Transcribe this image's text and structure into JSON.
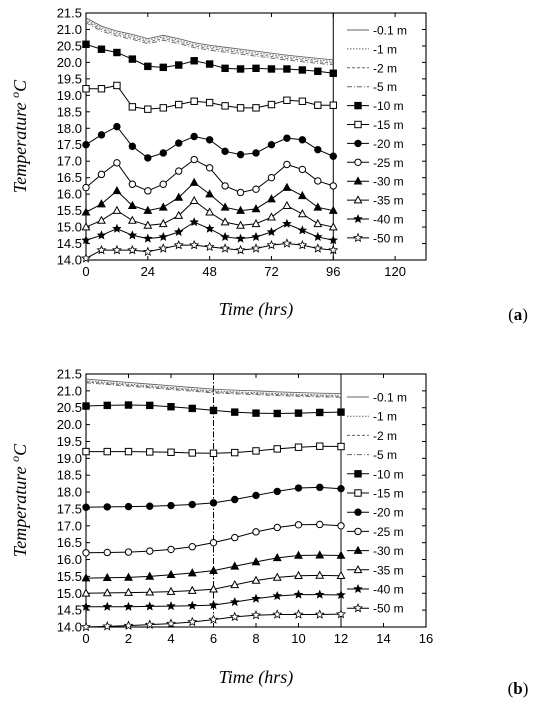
{
  "chart_data": [
    {
      "panel": "(a)",
      "panel_letter": "a",
      "type": "line",
      "xlabel": "Time (hrs)",
      "ylabel_main": "Temperature ",
      "ylabel_sup": "o",
      "ylabel_unit": "C",
      "xlim": [
        0,
        132
      ],
      "ylim": [
        14.0,
        21.5
      ],
      "xticks": [
        0,
        24,
        48,
        72,
        96,
        120
      ],
      "yticks": [
        14.0,
        14.5,
        15.0,
        15.5,
        16.0,
        16.5,
        17.0,
        17.5,
        18.0,
        18.5,
        19.0,
        19.5,
        20.0,
        20.5,
        21.0,
        21.5
      ],
      "vlines": [
        96
      ],
      "grid": false,
      "legend": "right",
      "series": [
        {
          "name": "-0.1 m",
          "marker": "none",
          "dash": "",
          "x": [
            0,
            6,
            12,
            18,
            24,
            30,
            36,
            42,
            48,
            54,
            60,
            66,
            72,
            78,
            84,
            90,
            96
          ],
          "y": [
            21.35,
            21.1,
            20.95,
            20.85,
            20.72,
            20.82,
            20.72,
            20.6,
            20.52,
            20.46,
            20.4,
            20.34,
            20.28,
            20.22,
            20.17,
            20.12,
            20.08
          ]
        },
        {
          "name": "-1 m",
          "marker": "none",
          "dash": "1.5,1.5",
          "x": [
            0,
            6,
            12,
            18,
            24,
            30,
            36,
            42,
            48,
            54,
            60,
            66,
            72,
            78,
            84,
            90,
            96
          ],
          "y": [
            21.3,
            21.05,
            20.9,
            20.8,
            20.67,
            20.77,
            20.67,
            20.55,
            20.47,
            20.41,
            20.35,
            20.29,
            20.23,
            20.17,
            20.12,
            20.07,
            20.03
          ]
        },
        {
          "name": "-2 m",
          "marker": "none",
          "dash": "3,2",
          "x": [
            0,
            6,
            12,
            18,
            24,
            30,
            36,
            42,
            48,
            54,
            60,
            66,
            72,
            78,
            84,
            90,
            96
          ],
          "y": [
            21.25,
            21.0,
            20.85,
            20.75,
            20.62,
            20.72,
            20.62,
            20.5,
            20.42,
            20.36,
            20.3,
            20.24,
            20.18,
            20.12,
            20.07,
            20.02,
            19.98
          ]
        },
        {
          "name": "-5 m",
          "marker": "none",
          "dash": "5,2,1,2",
          "x": [
            0,
            6,
            12,
            18,
            24,
            30,
            36,
            42,
            48,
            54,
            60,
            66,
            72,
            78,
            84,
            90,
            96
          ],
          "y": [
            21.2,
            20.95,
            20.8,
            20.7,
            20.57,
            20.67,
            20.57,
            20.45,
            20.37,
            20.31,
            20.25,
            20.19,
            20.13,
            20.07,
            20.02,
            19.97,
            19.93
          ]
        },
        {
          "name": "-10 m",
          "marker": "filled-square",
          "dash": "",
          "x": [
            0,
            6,
            12,
            18,
            24,
            30,
            36,
            42,
            48,
            54,
            60,
            66,
            72,
            78,
            84,
            90,
            96
          ],
          "y": [
            20.55,
            20.4,
            20.3,
            20.1,
            19.88,
            19.85,
            19.92,
            20.05,
            19.95,
            19.82,
            19.8,
            19.82,
            19.8,
            19.8,
            19.77,
            19.73,
            19.67
          ]
        },
        {
          "name": "-15 m",
          "marker": "open-square",
          "dash": "",
          "x": [
            0,
            6,
            12,
            18,
            24,
            30,
            36,
            42,
            48,
            54,
            60,
            66,
            72,
            78,
            84,
            90,
            96
          ],
          "y": [
            19.2,
            19.2,
            19.3,
            18.65,
            18.58,
            18.62,
            18.72,
            18.82,
            18.78,
            18.68,
            18.62,
            18.62,
            18.72,
            18.85,
            18.82,
            18.7,
            18.7
          ]
        },
        {
          "name": "-20 m",
          "marker": "filled-circle",
          "dash": "",
          "x": [
            0,
            6,
            12,
            18,
            24,
            30,
            36,
            42,
            48,
            54,
            60,
            66,
            72,
            78,
            84,
            90,
            96
          ],
          "y": [
            17.5,
            17.8,
            18.05,
            17.45,
            17.1,
            17.25,
            17.55,
            17.75,
            17.65,
            17.3,
            17.2,
            17.25,
            17.5,
            17.7,
            17.65,
            17.35,
            17.15
          ]
        },
        {
          "name": "-25 m",
          "marker": "open-circle",
          "dash": "",
          "x": [
            0,
            6,
            12,
            18,
            24,
            30,
            36,
            42,
            48,
            54,
            60,
            66,
            72,
            78,
            84,
            90,
            96
          ],
          "y": [
            16.2,
            16.6,
            16.95,
            16.3,
            16.1,
            16.3,
            16.7,
            17.05,
            16.8,
            16.25,
            16.05,
            16.15,
            16.5,
            16.9,
            16.75,
            16.4,
            16.25
          ]
        },
        {
          "name": "-30 m",
          "marker": "filled-triangle",
          "dash": "",
          "x": [
            0,
            6,
            12,
            18,
            24,
            30,
            36,
            42,
            48,
            54,
            60,
            66,
            72,
            78,
            84,
            90,
            96
          ],
          "y": [
            15.45,
            15.7,
            16.1,
            15.65,
            15.5,
            15.6,
            15.9,
            16.35,
            16.0,
            15.6,
            15.5,
            15.55,
            15.85,
            16.2,
            15.95,
            15.6,
            15.5
          ]
        },
        {
          "name": "-35 m",
          "marker": "open-triangle",
          "dash": "",
          "x": [
            0,
            6,
            12,
            18,
            24,
            30,
            36,
            42,
            48,
            54,
            60,
            66,
            72,
            78,
            84,
            90,
            96
          ],
          "y": [
            15.0,
            15.2,
            15.5,
            15.2,
            15.05,
            15.1,
            15.35,
            15.8,
            15.45,
            15.15,
            15.05,
            15.1,
            15.3,
            15.65,
            15.4,
            15.1,
            15.0
          ]
        },
        {
          "name": "-40 m",
          "marker": "filled-star",
          "dash": "",
          "x": [
            0,
            6,
            12,
            18,
            24,
            30,
            36,
            42,
            48,
            54,
            60,
            66,
            72,
            78,
            84,
            90,
            96
          ],
          "y": [
            14.6,
            14.75,
            14.95,
            14.75,
            14.65,
            14.7,
            14.85,
            15.15,
            14.95,
            14.7,
            14.65,
            14.7,
            14.85,
            15.1,
            14.9,
            14.7,
            14.6
          ]
        },
        {
          "name": "-50 m",
          "marker": "open-star",
          "dash": "",
          "x": [
            0,
            6,
            12,
            18,
            24,
            30,
            36,
            42,
            48,
            54,
            60,
            66,
            72,
            78,
            84,
            90,
            96
          ],
          "y": [
            14.05,
            14.3,
            14.3,
            14.3,
            14.25,
            14.35,
            14.45,
            14.45,
            14.4,
            14.35,
            14.3,
            14.35,
            14.45,
            14.5,
            14.45,
            14.35,
            14.3
          ]
        }
      ]
    },
    {
      "panel": "(b)",
      "panel_letter": "b",
      "type": "line",
      "xlabel": "Time (hrs)",
      "ylabel_main": "Temperature ",
      "ylabel_sup": "o",
      "ylabel_unit": "C",
      "xlim": [
        0,
        16
      ],
      "ylim": [
        14.0,
        21.5
      ],
      "xticks": [
        0,
        2,
        4,
        6,
        8,
        10,
        12,
        14,
        16
      ],
      "yticks": [
        14.0,
        14.5,
        15.0,
        15.5,
        16.0,
        16.5,
        17.0,
        17.5,
        18.0,
        18.5,
        19.0,
        19.5,
        20.0,
        20.5,
        21.0,
        21.5
      ],
      "vlines": [
        6,
        12
      ],
      "vline_styles": [
        "dashdot",
        "solid"
      ],
      "grid": false,
      "legend": "right",
      "series": [
        {
          "name": "-0.1 m",
          "marker": "none",
          "dash": "",
          "x": [
            0,
            1,
            2,
            3,
            4,
            5,
            6,
            7,
            8,
            9,
            10,
            11,
            12
          ],
          "y": [
            21.35,
            21.3,
            21.25,
            21.2,
            21.15,
            21.1,
            21.05,
            21.02,
            21.0,
            20.97,
            20.95,
            20.93,
            20.92
          ]
        },
        {
          "name": "-1 m",
          "marker": "none",
          "dash": "1.5,1.5",
          "x": [
            0,
            1,
            2,
            3,
            4,
            5,
            6,
            7,
            8,
            9,
            10,
            11,
            12
          ],
          "y": [
            21.3,
            21.25,
            21.2,
            21.15,
            21.1,
            21.05,
            21.0,
            20.97,
            20.95,
            20.92,
            20.9,
            20.88,
            20.87
          ]
        },
        {
          "name": "-2 m",
          "marker": "none",
          "dash": "3,2",
          "x": [
            0,
            1,
            2,
            3,
            4,
            5,
            6,
            7,
            8,
            9,
            10,
            11,
            12
          ],
          "y": [
            21.27,
            21.22,
            21.17,
            21.12,
            21.07,
            21.02,
            20.97,
            20.94,
            20.92,
            20.89,
            20.87,
            20.85,
            20.84
          ]
        },
        {
          "name": "-5 m",
          "marker": "none",
          "dash": "5,2,1,2",
          "x": [
            0,
            1,
            2,
            3,
            4,
            5,
            6,
            7,
            8,
            9,
            10,
            11,
            12
          ],
          "y": [
            21.24,
            21.19,
            21.14,
            21.09,
            21.04,
            20.99,
            20.94,
            20.91,
            20.89,
            20.86,
            20.84,
            20.82,
            20.81
          ]
        },
        {
          "name": "-10 m",
          "marker": "filled-square",
          "dash": "",
          "x": [
            0,
            1,
            2,
            3,
            4,
            5,
            6,
            7,
            8,
            9,
            10,
            11,
            12
          ],
          "y": [
            20.55,
            20.57,
            20.58,
            20.57,
            20.53,
            20.48,
            20.42,
            20.37,
            20.34,
            20.33,
            20.34,
            20.36,
            20.37
          ]
        },
        {
          "name": "-15 m",
          "marker": "open-square",
          "dash": "",
          "x": [
            0,
            1,
            2,
            3,
            4,
            5,
            6,
            7,
            8,
            9,
            10,
            11,
            12
          ],
          "y": [
            19.2,
            19.2,
            19.2,
            19.19,
            19.18,
            19.16,
            19.15,
            19.17,
            19.22,
            19.28,
            19.33,
            19.36,
            19.35
          ]
        },
        {
          "name": "-20 m",
          "marker": "filled-circle",
          "dash": "",
          "x": [
            0,
            1,
            2,
            3,
            4,
            5,
            6,
            7,
            8,
            9,
            10,
            11,
            12
          ],
          "y": [
            17.55,
            17.56,
            17.57,
            17.58,
            17.6,
            17.63,
            17.68,
            17.78,
            17.9,
            18.02,
            18.12,
            18.14,
            18.1
          ]
        },
        {
          "name": "-25 m",
          "marker": "open-circle",
          "dash": "",
          "x": [
            0,
            1,
            2,
            3,
            4,
            5,
            6,
            7,
            8,
            9,
            10,
            11,
            12
          ],
          "y": [
            16.2,
            16.21,
            16.22,
            16.25,
            16.3,
            16.38,
            16.5,
            16.65,
            16.82,
            16.95,
            17.03,
            17.04,
            17.0
          ]
        },
        {
          "name": "-30 m",
          "marker": "filled-triangle",
          "dash": "",
          "x": [
            0,
            1,
            2,
            3,
            4,
            5,
            6,
            7,
            8,
            9,
            10,
            11,
            12
          ],
          "y": [
            15.45,
            15.46,
            15.47,
            15.5,
            15.55,
            15.6,
            15.67,
            15.8,
            15.93,
            16.05,
            16.12,
            16.13,
            16.12
          ]
        },
        {
          "name": "-35 m",
          "marker": "open-triangle",
          "dash": "",
          "x": [
            0,
            1,
            2,
            3,
            4,
            5,
            6,
            7,
            8,
            9,
            10,
            11,
            12
          ],
          "y": [
            15.0,
            15.01,
            15.02,
            15.03,
            15.05,
            15.08,
            15.12,
            15.25,
            15.38,
            15.47,
            15.52,
            15.53,
            15.52
          ]
        },
        {
          "name": "-40 m",
          "marker": "filled-star",
          "dash": "",
          "x": [
            0,
            1,
            2,
            3,
            4,
            5,
            6,
            7,
            8,
            9,
            10,
            11,
            12
          ],
          "y": [
            14.6,
            14.6,
            14.6,
            14.61,
            14.62,
            14.63,
            14.65,
            14.74,
            14.84,
            14.92,
            14.96,
            14.96,
            14.95
          ]
        },
        {
          "name": "-50 m",
          "marker": "open-star",
          "dash": "",
          "x": [
            0,
            1,
            2,
            3,
            4,
            5,
            6,
            7,
            8,
            9,
            10,
            11,
            12
          ],
          "y": [
            14.0,
            14.02,
            14.04,
            14.07,
            14.1,
            14.15,
            14.22,
            14.3,
            14.35,
            14.37,
            14.37,
            14.37,
            14.38
          ]
        }
      ]
    }
  ]
}
